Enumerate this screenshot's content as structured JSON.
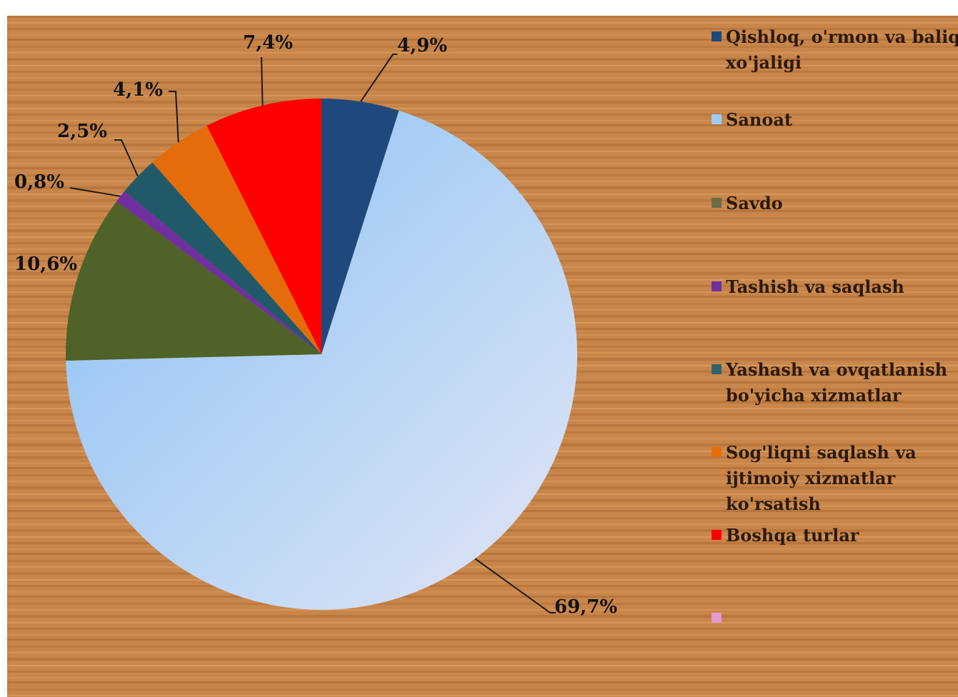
{
  "chart_data": {
    "type": "pie",
    "title": "",
    "start_angle_deg": 0,
    "direction": "clockwise",
    "legend_position": "right",
    "slices": [
      {
        "name": "Qishloq, o'rmon va baliq xo'jaligi",
        "value": 4.9,
        "label": "4,9%",
        "color": "#1f497d"
      },
      {
        "name": "Sanoat",
        "value": 69.7,
        "label": "69,7%",
        "color": "#9ecbf5"
      },
      {
        "name": "Savdo",
        "value": 10.6,
        "label": "10,6%",
        "color": "#4f6228"
      },
      {
        "name": "Tashish va saqlash",
        "value": 0.8,
        "label": "0,8%",
        "color": "#7030a0"
      },
      {
        "name": "Yashash va ovqatlanish bo'yicha xizmatlar",
        "value": 2.5,
        "label": "2,5%",
        "color": "#215968"
      },
      {
        "name": "Sog'liqni saqlash va ijtimoiy xizmatlar ko'rsatish",
        "value": 4.1,
        "label": "4,1%",
        "color": "#e46c0a"
      },
      {
        "name": "Boshqa turlar",
        "value": 7.4,
        "label": "7,4%",
        "color": "#ff0000"
      }
    ],
    "legend": [
      {
        "lines": [
          "Qishloq, o'rmon va baliq",
          "xo'jaligi"
        ],
        "color": "#1f497d"
      },
      {
        "lines": [
          "Sanoat"
        ],
        "color": "#9ecbf5"
      },
      {
        "lines": [
          "Savdo"
        ],
        "color": "#6b6b4a"
      },
      {
        "lines": [
          "Tashish va saqlash"
        ],
        "color": "#7030a0"
      },
      {
        "lines": [
          "Yashash va ovqatlanish",
          "bo'yicha xizmatlar"
        ],
        "color": "#31636c"
      },
      {
        "lines": [
          "Sog'liqni saqlash va",
          "ijtimoiy xizmatlar",
          "ko'rsatish"
        ],
        "color": "#e46c0a"
      },
      {
        "lines": [
          "Boshqa turlar"
        ],
        "color": "#ff0000"
      },
      {
        "lines": [],
        "color": "#e79ad0"
      }
    ]
  }
}
